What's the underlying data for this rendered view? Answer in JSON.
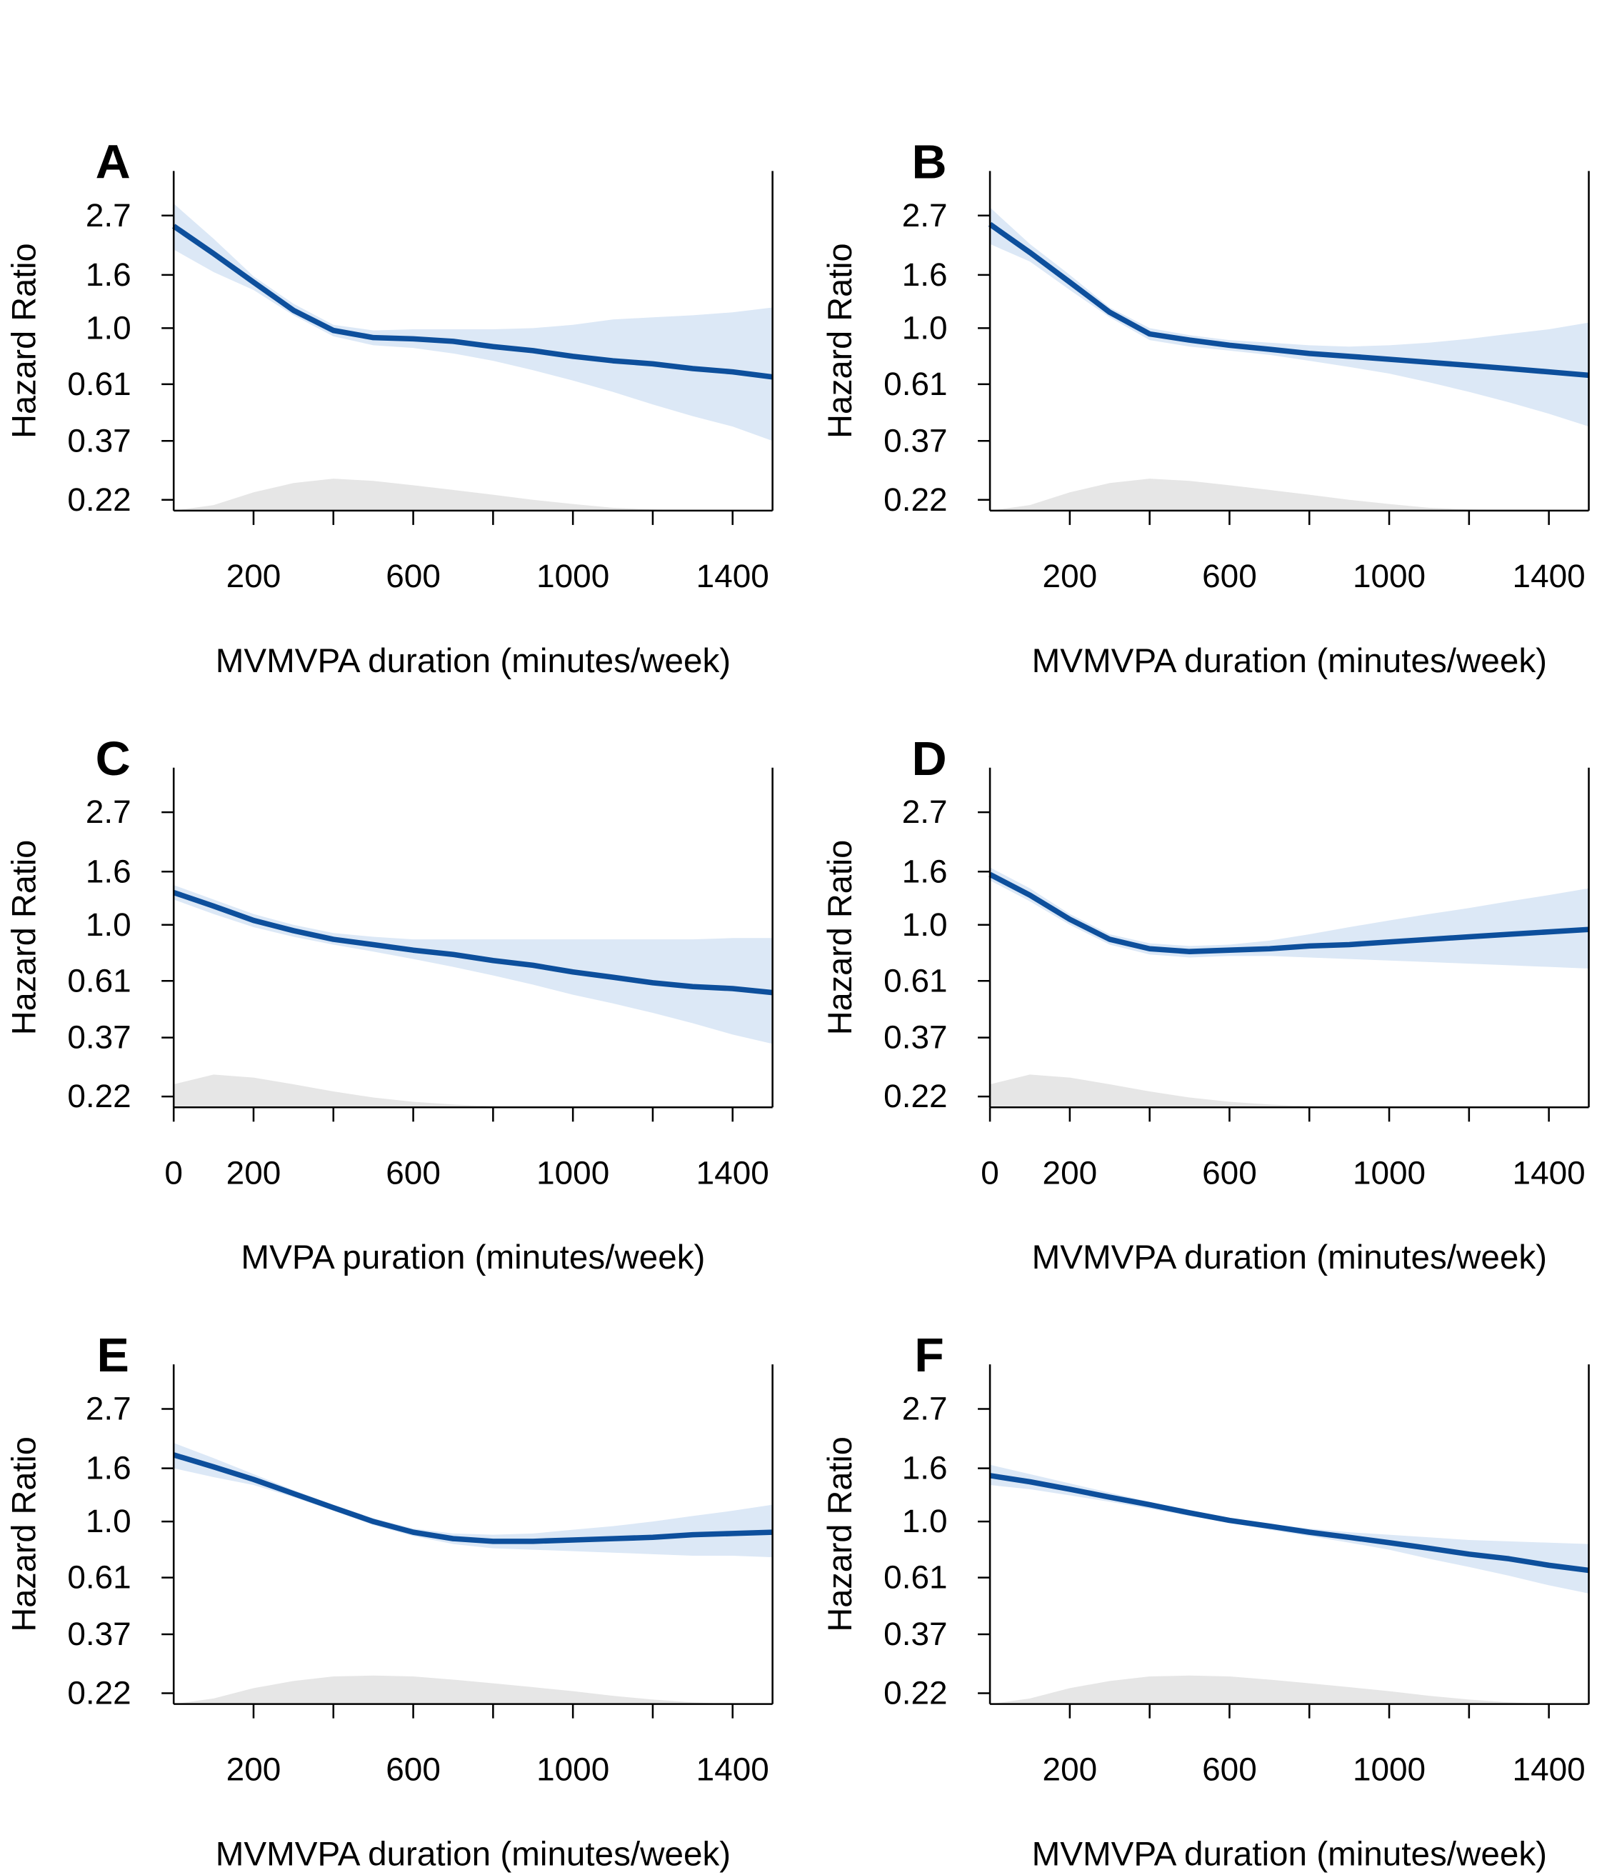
{
  "chart_data": [
    {
      "type": "line",
      "panel_label": "A",
      "ylabel": "Hazard Ratio",
      "xlabel": "MVMVPA duration (minutes/week)",
      "ylog": true,
      "ylim": [
        0.2,
        4
      ],
      "yticks": [
        0.22,
        0.37,
        0.61,
        {
          "value": 1,
          "label": "1.0"
        },
        1.6,
        2.7
      ],
      "xlim": [
        0,
        1500
      ],
      "xticks": [
        200,
        600,
        1000,
        1400
      ],
      "xminorticks": [
        400,
        800,
        1200
      ],
      "x": [
        0,
        100,
        200,
        300,
        400,
        500,
        600,
        700,
        800,
        900,
        1000,
        1100,
        1200,
        1300,
        1400,
        1500
      ],
      "values": [
        2.46,
        1.93,
        1.5,
        1.17,
        0.98,
        0.92,
        0.91,
        0.89,
        0.85,
        0.82,
        0.78,
        0.75,
        0.73,
        0.7,
        0.68,
        0.65
      ],
      "ci_upper": [
        3.0,
        2.2,
        1.58,
        1.24,
        1.03,
        0.98,
        0.99,
        0.99,
        0.99,
        1.0,
        1.03,
        1.08,
        1.1,
        1.12,
        1.15,
        1.2
      ],
      "ci_lower": [
        2.0,
        1.64,
        1.4,
        1.12,
        0.93,
        0.86,
        0.84,
        0.8,
        0.75,
        0.69,
        0.63,
        0.57,
        0.51,
        0.46,
        0.42,
        0.37
      ],
      "density": [
        0.2,
        0.21,
        0.235,
        0.255,
        0.265,
        0.26,
        0.25,
        0.24,
        0.23,
        0.22,
        0.212,
        0.205,
        0.202,
        0.2,
        0.2,
        0.2
      ],
      "color": "#0d4f9c",
      "ci_color": "#dce8f6",
      "density_color": "#e6e6e6"
    },
    {
      "type": "line",
      "panel_label": "B",
      "ylabel": "Hazard Ratio",
      "xlabel": "MVMVPA duration (minutes/week)",
      "ylog": true,
      "ylim": [
        0.2,
        4
      ],
      "yticks": [
        0.22,
        0.37,
        0.61,
        {
          "value": 1,
          "label": "1.0"
        },
        1.6,
        2.7
      ],
      "xlim": [
        0,
        1500
      ],
      "xticks": [
        200,
        600,
        1000,
        1400
      ],
      "xminorticks": [
        400,
        800,
        1200
      ],
      "x": [
        0,
        100,
        200,
        300,
        400,
        500,
        600,
        700,
        800,
        900,
        1000,
        1100,
        1200,
        1300,
        1400,
        1500
      ],
      "values": [
        2.5,
        1.95,
        1.5,
        1.15,
        0.95,
        0.9,
        0.86,
        0.83,
        0.8,
        0.78,
        0.76,
        0.74,
        0.72,
        0.7,
        0.68,
        0.66
      ],
      "ci_upper": [
        2.9,
        2.1,
        1.6,
        1.2,
        1.0,
        0.94,
        0.9,
        0.88,
        0.86,
        0.85,
        0.86,
        0.88,
        0.91,
        0.95,
        0.99,
        1.05
      ],
      "ci_lower": [
        2.1,
        1.8,
        1.4,
        1.1,
        0.9,
        0.85,
        0.82,
        0.79,
        0.75,
        0.71,
        0.67,
        0.62,
        0.57,
        0.52,
        0.47,
        0.42
      ],
      "density": [
        0.2,
        0.21,
        0.235,
        0.255,
        0.265,
        0.26,
        0.25,
        0.24,
        0.23,
        0.22,
        0.212,
        0.205,
        0.202,
        0.2,
        0.2,
        0.2
      ],
      "color": "#0d4f9c",
      "ci_color": "#dce8f6",
      "density_color": "#e6e6e6"
    },
    {
      "type": "line",
      "panel_label": "C",
      "ylabel": "Hazard Ratio",
      "xlabel": "MVPA puration (minutes/week)",
      "ylog": true,
      "ylim": [
        0.2,
        4
      ],
      "yticks": [
        0.22,
        0.37,
        0.61,
        {
          "value": 1,
          "label": "1.0"
        },
        1.6,
        2.7
      ],
      "xlim": [
        0,
        1500
      ],
      "xticks": [
        0,
        200,
        600,
        1000,
        1400
      ],
      "xminorticks": [
        400,
        800,
        1200
      ],
      "x": [
        0,
        100,
        200,
        300,
        400,
        500,
        600,
        700,
        800,
        900,
        1000,
        1100,
        1200,
        1300,
        1400,
        1500
      ],
      "values": [
        1.33,
        1.18,
        1.04,
        0.95,
        0.88,
        0.84,
        0.8,
        0.77,
        0.73,
        0.7,
        0.66,
        0.63,
        0.6,
        0.58,
        0.57,
        0.55
      ],
      "ci_upper": [
        1.42,
        1.25,
        1.1,
        1.0,
        0.93,
        0.9,
        0.88,
        0.88,
        0.88,
        0.88,
        0.88,
        0.88,
        0.88,
        0.88,
        0.89,
        0.89
      ],
      "ci_lower": [
        1.25,
        1.1,
        0.98,
        0.9,
        0.84,
        0.79,
        0.74,
        0.69,
        0.64,
        0.59,
        0.54,
        0.5,
        0.46,
        0.42,
        0.38,
        0.35
      ],
      "density": [
        0.245,
        0.267,
        0.26,
        0.245,
        0.23,
        0.218,
        0.21,
        0.205,
        0.202,
        0.2,
        0.2,
        0.2,
        0.2,
        0.2,
        0.2,
        0.2
      ],
      "color": "#0d4f9c",
      "ci_color": "#dce8f6",
      "density_color": "#e6e6e6"
    },
    {
      "type": "line",
      "panel_label": "D",
      "ylabel": "Hazard Ratio",
      "xlabel": "MVMVPA duration (minutes/week)",
      "ylog": true,
      "ylim": [
        0.2,
        4
      ],
      "yticks": [
        0.22,
        0.37,
        0.61,
        {
          "value": 1,
          "label": "1.0"
        },
        1.6,
        2.7
      ],
      "xlim": [
        0,
        1500
      ],
      "xticks": [
        0,
        200,
        600,
        1000,
        1400
      ],
      "xminorticks": [
        400,
        800,
        1200
      ],
      "x": [
        0,
        100,
        200,
        300,
        400,
        500,
        600,
        700,
        800,
        900,
        1000,
        1100,
        1200,
        1300,
        1400,
        1500
      ],
      "values": [
        1.56,
        1.3,
        1.05,
        0.88,
        0.81,
        0.79,
        0.8,
        0.81,
        0.83,
        0.84,
        0.86,
        0.88,
        0.9,
        0.92,
        0.94,
        0.96
      ],
      "ci_upper": [
        1.66,
        1.38,
        1.1,
        0.92,
        0.85,
        0.83,
        0.84,
        0.87,
        0.92,
        0.98,
        1.04,
        1.1,
        1.16,
        1.23,
        1.3,
        1.38
      ],
      "ci_lower": [
        1.48,
        1.23,
        1.0,
        0.84,
        0.77,
        0.75,
        0.76,
        0.76,
        0.75,
        0.74,
        0.73,
        0.72,
        0.71,
        0.7,
        0.69,
        0.68
      ],
      "density": [
        0.245,
        0.267,
        0.26,
        0.245,
        0.23,
        0.218,
        0.21,
        0.205,
        0.202,
        0.2,
        0.2,
        0.2,
        0.2,
        0.2,
        0.2,
        0.2
      ],
      "color": "#0d4f9c",
      "ci_color": "#dce8f6",
      "density_color": "#e6e6e6"
    },
    {
      "type": "line",
      "panel_label": "E",
      "ylabel": "Hazard Ratio",
      "xlabel": "MVMVPA duration (minutes/week)",
      "ylog": true,
      "ylim": [
        0.2,
        4
      ],
      "yticks": [
        0.22,
        0.37,
        0.61,
        {
          "value": 1,
          "label": "1.0"
        },
        1.6,
        2.7
      ],
      "xlim": [
        0,
        1500
      ],
      "xticks": [
        200,
        600,
        1000,
        1400
      ],
      "xminorticks": [
        400,
        800,
        1200
      ],
      "x": [
        0,
        100,
        200,
        300,
        400,
        500,
        600,
        700,
        800,
        900,
        1000,
        1100,
        1200,
        1300,
        1400,
        1500
      ],
      "values": [
        1.8,
        1.62,
        1.45,
        1.28,
        1.13,
        1.0,
        0.91,
        0.86,
        0.84,
        0.84,
        0.85,
        0.86,
        0.87,
        0.89,
        0.9,
        0.91
      ],
      "ci_upper": [
        2.0,
        1.75,
        1.52,
        1.32,
        1.16,
        1.03,
        0.94,
        0.9,
        0.89,
        0.9,
        0.93,
        0.96,
        1.0,
        1.05,
        1.1,
        1.16
      ],
      "ci_lower": [
        1.6,
        1.48,
        1.38,
        1.24,
        1.1,
        0.97,
        0.88,
        0.82,
        0.79,
        0.78,
        0.77,
        0.76,
        0.75,
        0.74,
        0.74,
        0.73
      ],
      "density": [
        0.2,
        0.21,
        0.23,
        0.245,
        0.255,
        0.257,
        0.255,
        0.248,
        0.24,
        0.232,
        0.224,
        0.215,
        0.208,
        0.203,
        0.2,
        0.2
      ],
      "color": "#0d4f9c",
      "ci_color": "#dce8f6",
      "density_color": "#e6e6e6"
    },
    {
      "type": "line",
      "panel_label": "F",
      "ylabel": "Hazard Ratio",
      "xlabel": "MVMVPA duration (minutes/week)",
      "ylog": true,
      "ylim": [
        0.2,
        4
      ],
      "yticks": [
        0.22,
        0.37,
        0.61,
        {
          "value": 1,
          "label": "1.0"
        },
        1.6,
        2.7
      ],
      "xlim": [
        0,
        1500
      ],
      "xticks": [
        200,
        600,
        1000,
        1400
      ],
      "xminorticks": [
        400,
        800,
        1200
      ],
      "x": [
        0,
        100,
        200,
        300,
        400,
        500,
        600,
        700,
        800,
        900,
        1000,
        1100,
        1200,
        1300,
        1400,
        1500
      ],
      "values": [
        1.5,
        1.42,
        1.33,
        1.24,
        1.16,
        1.08,
        1.01,
        0.96,
        0.91,
        0.87,
        0.83,
        0.79,
        0.75,
        0.72,
        0.68,
        0.65
      ],
      "ci_upper": [
        1.65,
        1.52,
        1.4,
        1.29,
        1.19,
        1.1,
        1.03,
        0.98,
        0.94,
        0.91,
        0.89,
        0.87,
        0.85,
        0.84,
        0.83,
        0.82
      ],
      "ci_lower": [
        1.38,
        1.33,
        1.26,
        1.19,
        1.12,
        1.05,
        0.99,
        0.93,
        0.88,
        0.83,
        0.78,
        0.72,
        0.67,
        0.62,
        0.57,
        0.53
      ],
      "density": [
        0.2,
        0.21,
        0.23,
        0.245,
        0.255,
        0.257,
        0.255,
        0.248,
        0.24,
        0.232,
        0.224,
        0.215,
        0.208,
        0.203,
        0.2,
        0.2
      ],
      "color": "#0d4f9c",
      "ci_color": "#dce8f6",
      "density_color": "#e6e6e6"
    }
  ]
}
